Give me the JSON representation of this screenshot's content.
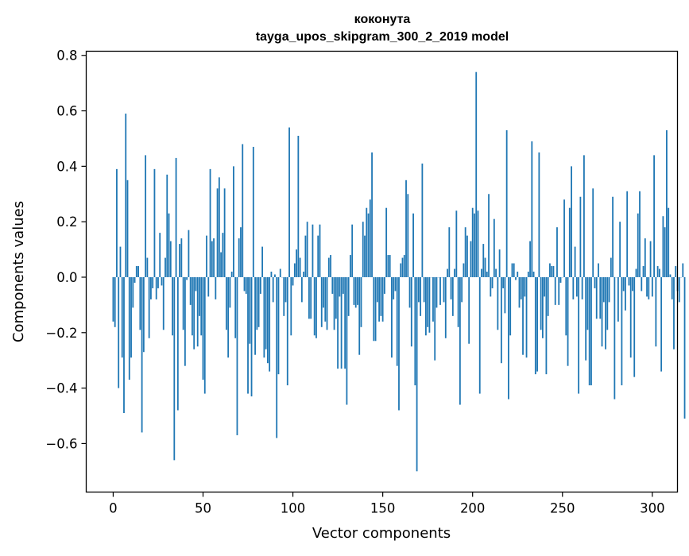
{
  "chart_data": {
    "type": "bar",
    "title": "коконута",
    "subtitle": "tayga_upos_skipgram_300_2_2019 model",
    "xlabel": "Vector components",
    "ylabel": "Components values",
    "xlim": [
      -15,
      314
    ],
    "ylim": [
      -0.775,
      0.815
    ],
    "x_ticks": [
      0,
      50,
      100,
      150,
      200,
      250,
      300
    ],
    "y_ticks": [
      -0.6,
      -0.4,
      -0.2,
      0.0,
      0.2,
      0.4,
      0.6,
      0.8
    ],
    "y_tick_labels": [
      "−0.6",
      "−0.4",
      "−0.2",
      "0.0",
      "0.2",
      "0.4",
      "0.6",
      "0.8"
    ],
    "grid": false,
    "bar_color": "#1f77b4",
    "values": [
      -0.16,
      -0.18,
      0.39,
      -0.4,
      0.11,
      -0.29,
      -0.49,
      0.59,
      0.35,
      -0.37,
      -0.29,
      -0.11,
      -0.02,
      0.04,
      0.04,
      -0.19,
      -0.56,
      -0.27,
      0.44,
      0.07,
      -0.22,
      -0.08,
      -0.04,
      0.39,
      -0.08,
      -0.04,
      0.16,
      -0.03,
      -0.19,
      0.07,
      0.37,
      0.23,
      0.13,
      -0.21,
      -0.66,
      0.43,
      -0.48,
      0.12,
      0.14,
      -0.19,
      -0.32,
      -0.01,
      0.17,
      -0.1,
      -0.21,
      -0.26,
      -0.05,
      -0.25,
      -0.14,
      -0.21,
      -0.37,
      -0.42,
      0.15,
      -0.07,
      0.39,
      0.13,
      0.14,
      -0.08,
      0.32,
      0.36,
      0.09,
      0.16,
      0.32,
      -0.19,
      -0.29,
      -0.11,
      0.02,
      0.4,
      -0.22,
      -0.57,
      0.14,
      0.18,
      0.48,
      -0.05,
      -0.06,
      -0.42,
      -0.24,
      -0.43,
      0.47,
      -0.28,
      -0.19,
      -0.18,
      -0.06,
      0.11,
      -0.29,
      -0.26,
      -0.31,
      -0.34,
      0.02,
      -0.09,
      0.01,
      -0.58,
      -0.35,
      0.03,
      0.0,
      -0.14,
      -0.09,
      -0.39,
      0.54,
      -0.21,
      -0.03,
      0.05,
      0.1,
      0.51,
      0.07,
      -0.09,
      0.02,
      0.15,
      0.2,
      -0.15,
      -0.15,
      0.19,
      -0.21,
      -0.22,
      0.15,
      0.19,
      -0.18,
      -0.11,
      -0.16,
      -0.19,
      0.07,
      0.08,
      -0.06,
      -0.19,
      -0.15,
      -0.33,
      -0.07,
      -0.33,
      -0.06,
      -0.33,
      -0.46,
      -0.14,
      0.08,
      0.19,
      -0.1,
      -0.11,
      -0.1,
      -0.28,
      -0.18,
      0.2,
      0.15,
      0.25,
      0.23,
      0.28,
      0.45,
      -0.23,
      -0.23,
      -0.09,
      -0.16,
      -0.14,
      -0.16,
      -0.06,
      0.25,
      0.08,
      0.08,
      -0.29,
      -0.08,
      -0.05,
      -0.32,
      -0.48,
      0.05,
      0.07,
      0.08,
      0.35,
      0.3,
      -0.11,
      -0.25,
      0.23,
      -0.39,
      -0.7,
      -0.09,
      -0.14,
      0.41,
      -0.09,
      -0.21,
      -0.18,
      -0.2,
      0.0,
      -0.16,
      -0.3,
      -0.11,
      0.0,
      -0.1,
      0.0,
      -0.09,
      -0.22,
      0.03,
      0.18,
      -0.08,
      -0.14,
      0.03,
      0.24,
      -0.18,
      -0.46,
      -0.09,
      0.05,
      0.18,
      0.15,
      -0.24,
      0.13,
      0.25,
      0.23,
      0.74,
      0.24,
      -0.42,
      0.03,
      0.12,
      0.07,
      0.02,
      0.3,
      -0.07,
      -0.04,
      0.21,
      0.03,
      -0.19,
      0.1,
      -0.31,
      -0.04,
      -0.13,
      0.53,
      -0.44,
      -0.21,
      0.05,
      0.05,
      -0.01,
      0.02,
      -0.11,
      -0.08,
      -0.28,
      -0.07,
      -0.29,
      0.02,
      0.13,
      0.49,
      0.02,
      -0.35,
      -0.34,
      0.45,
      -0.19,
      -0.22,
      -0.07,
      -0.35,
      -0.14,
      0.05,
      0.04,
      0.04,
      -0.1,
      0.18,
      -0.1,
      -0.02,
      0.0,
      0.28,
      -0.21,
      -0.32,
      0.25,
      0.4,
      -0.08,
      0.11,
      -0.07,
      -0.42,
      0.29,
      -0.08,
      0.44,
      -0.3,
      -0.19,
      -0.39,
      -0.39,
      0.32,
      -0.04,
      -0.15,
      0.05,
      -0.15,
      -0.25,
      -0.09,
      -0.26,
      -0.19,
      -0.09,
      0.07,
      0.29,
      -0.44,
      0.0,
      -0.16,
      0.2,
      -0.39,
      -0.05,
      -0.12,
      0.31,
      -0.03,
      -0.29,
      -0.05,
      -0.36,
      0.03,
      0.23,
      0.31,
      -0.05,
      0.04,
      0.14,
      -0.07,
      -0.08,
      0.13,
      -0.07,
      0.44,
      -0.25,
      0.04,
      0.03,
      -0.34,
      0.22,
      0.18,
      0.53,
      0.25,
      0.01,
      -0.08,
      -0.26,
      0.04,
      -0.05,
      -0.09,
      0.0,
      0.05,
      -0.51
    ]
  }
}
